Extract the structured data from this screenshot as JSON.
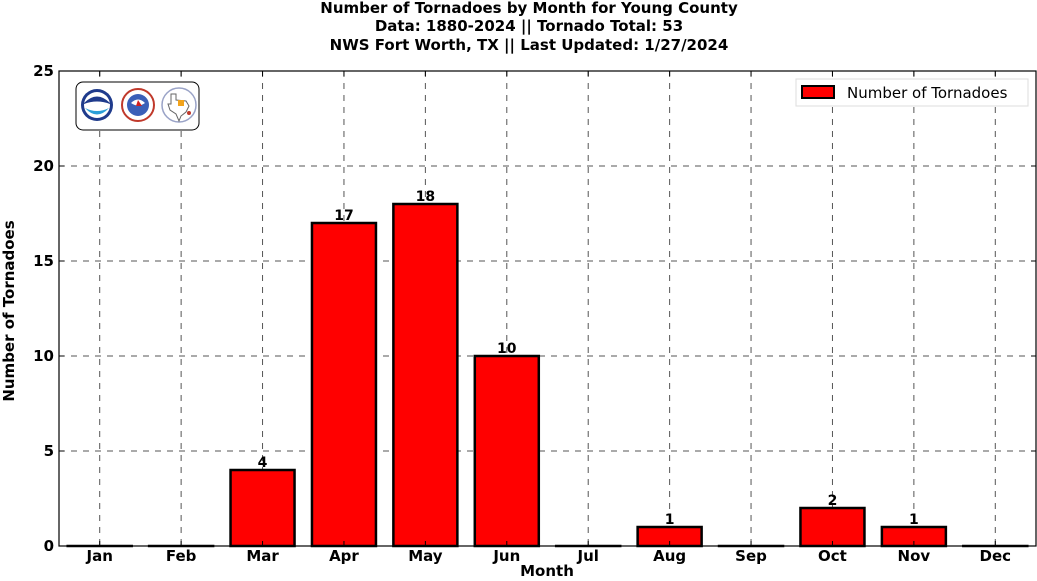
{
  "title_lines": [
    "Number of Tornadoes by Month for Young County",
    "Data: 1880-2024 || Tornado Total: 53",
    "NWS Fort Worth, TX || Last Updated: 1/27/2024"
  ],
  "colors": {
    "bar_fill": "#ff0000",
    "bar_stroke": "#000000",
    "grid": "#555555"
  },
  "logos": [
    "noaa-logo-icon",
    "nws-logo-icon",
    "texas-map-logo-icon"
  ],
  "chart_data": {
    "type": "bar",
    "categories": [
      "Jan",
      "Feb",
      "Mar",
      "Apr",
      "May",
      "Jun",
      "Jul",
      "Aug",
      "Sep",
      "Oct",
      "Nov",
      "Dec"
    ],
    "series": [
      {
        "name": "Number of Tornadoes",
        "values": [
          0,
          0,
          4,
          17,
          18,
          10,
          0,
          1,
          0,
          2,
          1,
          0
        ]
      }
    ],
    "data_labels": [
      "",
      "",
      "4",
      "17",
      "18",
      "10",
      "",
      "1",
      "",
      "2",
      "1",
      ""
    ],
    "xlabel": "Month",
    "ylabel": "Number of Tornadoes",
    "ylim": [
      0,
      25
    ],
    "yticks": [
      0,
      5,
      10,
      15,
      20,
      25
    ],
    "grid": true,
    "legend_position": "top-right"
  }
}
